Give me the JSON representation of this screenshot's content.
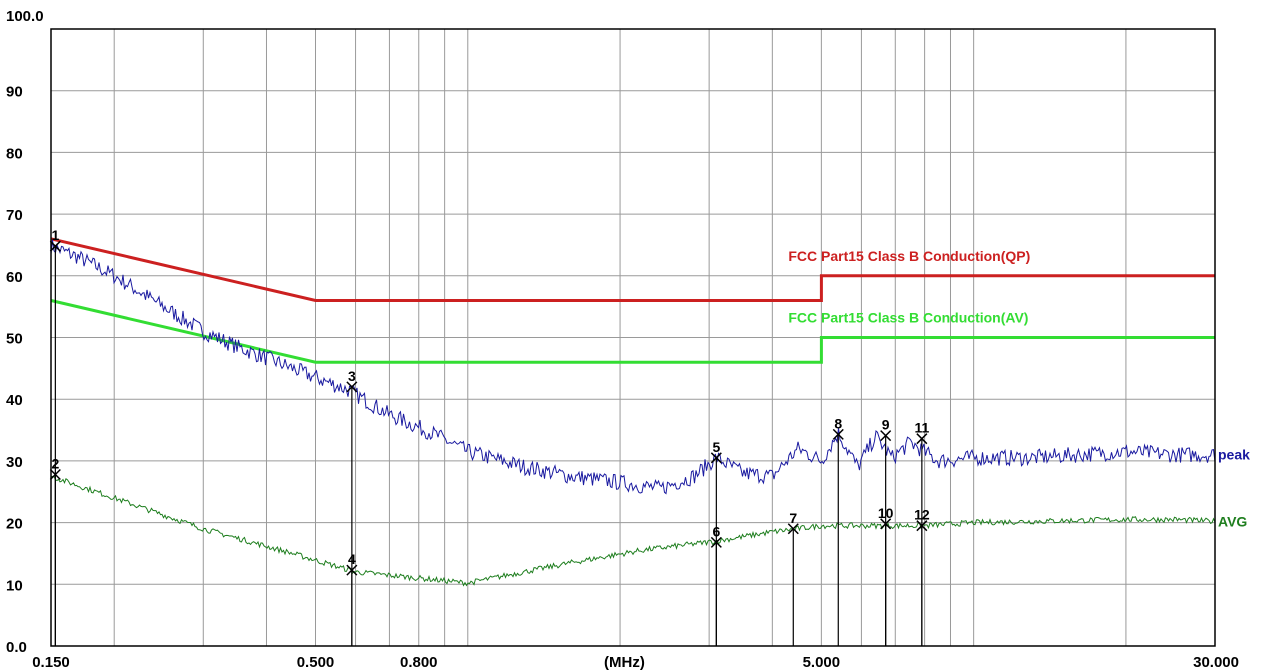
{
  "chart_data": {
    "type": "line",
    "title": "",
    "xlabel": "",
    "ylabel": "",
    "x_scale": "log",
    "xlim": [
      0.15,
      30
    ],
    "ylim": [
      0,
      100
    ],
    "x_unit_label": "(MHz)",
    "y_top_label": "100.0",
    "y_ticks": [
      {
        "value": 90,
        "label": "90"
      },
      {
        "value": 80,
        "label": "80"
      },
      {
        "value": 70,
        "label": "70"
      },
      {
        "value": 60,
        "label": "60"
      },
      {
        "value": 50,
        "label": "50"
      },
      {
        "value": 40,
        "label": "40"
      },
      {
        "value": 30,
        "label": "30"
      },
      {
        "value": 20,
        "label": "20"
      },
      {
        "value": 10,
        "label": "10"
      },
      {
        "value": 0,
        "label": "0.0"
      }
    ],
    "x_ticks": [
      {
        "value": 0.15,
        "label": "0.150"
      },
      {
        "value": 0.5,
        "label": "0.500"
      },
      {
        "value": 0.8,
        "label": "0.800"
      },
      {
        "value": 5,
        "label": "5.000"
      },
      {
        "value": 30,
        "label": "30.000"
      }
    ],
    "grid": true,
    "limit_lines": [
      {
        "name": "FCC Part15 Class B Conduction(QP)",
        "color": "#cc2020",
        "x": [
          0.15,
          0.5,
          5,
          5,
          30
        ],
        "y": [
          66,
          56,
          56,
          60,
          60
        ]
      },
      {
        "name": "FCC Part15 Class B Conduction(AV)",
        "color": "#33dd33",
        "x": [
          0.15,
          0.5,
          5,
          5,
          30
        ],
        "y": [
          56,
          46,
          46,
          50,
          50
        ]
      }
    ],
    "series": [
      {
        "name": "peak",
        "color": "#1a1aa0",
        "x": [
          0.15,
          0.17,
          0.2,
          0.25,
          0.3,
          0.35,
          0.42,
          0.5,
          0.58,
          0.7,
          0.85,
          1.0,
          1.3,
          1.6,
          2.0,
          2.4,
          2.8,
          3.1,
          3.5,
          4.0,
          4.5,
          5.0,
          5.4,
          5.9,
          6.4,
          6.9,
          7.5,
          8.5,
          10,
          13,
          16,
          20,
          25,
          30
        ],
        "y": [
          64.8,
          63,
          60,
          55,
          51,
          48.5,
          46,
          43.5,
          41.5,
          37.5,
          34.5,
          31.5,
          29,
          27.5,
          26.5,
          25.5,
          27.5,
          30.5,
          28,
          27.5,
          32,
          30,
          34.5,
          29,
          34,
          30.5,
          33,
          30,
          30.5,
          30.5,
          31,
          31.5,
          31,
          31
        ]
      },
      {
        "name": "AVG",
        "color": "#1e7e1e",
        "x": [
          0.15,
          0.2,
          0.3,
          0.45,
          0.6,
          0.8,
          1.0,
          1.2,
          1.6,
          2.2,
          3.1,
          4.0,
          5.0,
          6.0,
          7.0,
          8.0,
          10,
          15,
          20,
          25,
          30
        ],
        "y": [
          27.5,
          24,
          19,
          15,
          12,
          11,
          10.2,
          11.5,
          13.5,
          15.5,
          17,
          18.5,
          19.5,
          19.5,
          19.5,
          19.5,
          20,
          20.3,
          20.5,
          20.5,
          20.2
        ]
      }
    ],
    "markers": [
      {
        "label": "1",
        "x": 0.153,
        "y": 64.8
      },
      {
        "label": "2",
        "x": 0.153,
        "y": 27.8
      },
      {
        "label": "3",
        "x": 0.59,
        "y": 42.0
      },
      {
        "label": "4",
        "x": 0.59,
        "y": 12.3
      },
      {
        "label": "5",
        "x": 3.1,
        "y": 30.5
      },
      {
        "label": "6",
        "x": 3.1,
        "y": 16.8
      },
      {
        "label": "7",
        "x": 4.4,
        "y": 19.0
      },
      {
        "label": "8",
        "x": 5.4,
        "y": 34.3
      },
      {
        "label": "9",
        "x": 6.7,
        "y": 34.1
      },
      {
        "label": "10",
        "x": 6.7,
        "y": 19.8
      },
      {
        "label": "11",
        "x": 7.9,
        "y": 33.6
      },
      {
        "label": "12",
        "x": 7.9,
        "y": 19.5
      }
    ]
  }
}
